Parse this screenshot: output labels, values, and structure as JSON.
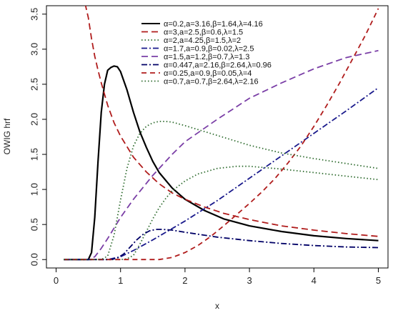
{
  "chart_data": {
    "type": "line",
    "xlabel": "x",
    "ylabel": "OWIG hrf",
    "xlim": [
      -0.15,
      5.15
    ],
    "ylim": [
      -0.12,
      3.62
    ],
    "xticks": [
      0,
      1,
      2,
      3,
      4,
      5
    ],
    "yticks": [
      0.0,
      0.5,
      1.0,
      1.5,
      2.0,
      2.5,
      3.0,
      3.5
    ],
    "xtick_labels": [
      "0",
      "1",
      "2",
      "3",
      "4",
      "5"
    ],
    "ytick_labels": [
      "0.0",
      "0.5",
      "1.0",
      "1.5",
      "2.0",
      "2.5",
      "3.0",
      "3.5"
    ],
    "grid": false,
    "legend_position": "top-right",
    "series": [
      {
        "name": "α=0.2,a=3.16,β=1.64,λ=4.16",
        "color": "#000000",
        "dash": "solid",
        "x": [
          0.12,
          0.5,
          0.55,
          0.6,
          0.65,
          0.7,
          0.75,
          0.8,
          0.85,
          0.9,
          0.95,
          1.0,
          1.1,
          1.2,
          1.3,
          1.4,
          1.5,
          1.6,
          1.8,
          2.0,
          2.3,
          2.6,
          3.0,
          3.5,
          4.0,
          4.5,
          5.0
        ],
        "y": [
          0.0,
          0.0,
          0.1,
          0.6,
          1.4,
          2.1,
          2.5,
          2.7,
          2.74,
          2.76,
          2.75,
          2.68,
          2.42,
          2.1,
          1.82,
          1.6,
          1.4,
          1.24,
          1.02,
          0.86,
          0.7,
          0.58,
          0.48,
          0.4,
          0.34,
          0.3,
          0.27
        ]
      },
      {
        "name": "α=3,a=2.5,β=0.6,λ=1.5",
        "color": "#b01c1c",
        "dash": "longdash",
        "x": [
          0.45,
          0.5,
          0.55,
          0.6,
          0.65,
          0.7,
          0.8,
          0.9,
          1.0,
          1.2,
          1.4,
          1.6,
          1.8,
          2.0,
          2.3,
          2.6,
          3.0,
          3.5,
          4.0,
          4.5,
          5.0
        ],
        "y": [
          3.65,
          3.45,
          3.15,
          2.9,
          2.7,
          2.52,
          2.2,
          1.95,
          1.76,
          1.46,
          1.25,
          1.08,
          0.95,
          0.86,
          0.75,
          0.66,
          0.57,
          0.48,
          0.42,
          0.37,
          0.33
        ]
      },
      {
        "name": "α=2,a=4.25,β=1.5,λ=2",
        "color": "#2e6b2e",
        "dash": "dotted",
        "x": [
          0.12,
          1.0,
          1.1,
          1.2,
          1.3,
          1.4,
          1.5,
          1.6,
          1.7,
          1.8,
          2.0,
          2.2,
          2.5,
          2.8,
          3.0,
          3.5,
          4.0,
          4.5,
          5.0
        ],
        "y": [
          0.0,
          0.0,
          0.01,
          0.06,
          0.22,
          0.4,
          0.58,
          0.74,
          0.87,
          0.98,
          1.12,
          1.22,
          1.3,
          1.33,
          1.33,
          1.29,
          1.24,
          1.19,
          1.14
        ]
      },
      {
        "name": "α=1.7,a=0.9,β=0.02,λ=2.5",
        "color": "#1a1a8c",
        "dash": "dashdot",
        "x": [
          0.12,
          0.8,
          1.0,
          1.2,
          1.5,
          2.0,
          2.5,
          3.0,
          3.5,
          4.0,
          4.5,
          5.0
        ],
        "y": [
          0.0,
          0.0,
          0.04,
          0.13,
          0.28,
          0.55,
          0.84,
          1.16,
          1.48,
          1.8,
          2.12,
          2.45
        ]
      },
      {
        "name": "α=1.5,a=1.2,β=0.7,λ=1.3",
        "color": "#7a3ea6",
        "dash": "longdash",
        "x": [
          0.12,
          0.5,
          0.6,
          0.7,
          0.8,
          1.0,
          1.2,
          1.5,
          1.8,
          2.0,
          2.5,
          3.0,
          3.5,
          4.0,
          4.5,
          5.0
        ],
        "y": [
          0.0,
          0.0,
          0.04,
          0.16,
          0.3,
          0.6,
          0.86,
          1.2,
          1.5,
          1.68,
          2.0,
          2.3,
          2.52,
          2.72,
          2.88,
          2.98
        ]
      },
      {
        "name": "α=0.447,a=2.16,β=2.64,λ=0.96",
        "color": "#000066",
        "dash": "dashdot",
        "x": [
          0.12,
          0.85,
          0.95,
          1.05,
          1.15,
          1.25,
          1.35,
          1.45,
          1.55,
          1.65,
          1.8,
          2.0,
          2.5,
          3.0,
          3.5,
          4.0,
          4.5,
          5.0
        ],
        "y": [
          0.0,
          0.0,
          0.02,
          0.08,
          0.18,
          0.28,
          0.36,
          0.41,
          0.43,
          0.43,
          0.42,
          0.39,
          0.32,
          0.27,
          0.23,
          0.2,
          0.18,
          0.17
        ]
      },
      {
        "name": "α=0.25,a=0.9,β=0.05,λ=4",
        "color": "#b01c1c",
        "dash": "dashed",
        "x": [
          0.12,
          1.6,
          1.8,
          2.0,
          2.2,
          2.4,
          2.6,
          2.8,
          3.0,
          3.2,
          3.4,
          3.6,
          3.8,
          4.0,
          4.2,
          4.4,
          4.6,
          4.8,
          5.0
        ],
        "y": [
          0.0,
          0.0,
          0.03,
          0.1,
          0.2,
          0.33,
          0.48,
          0.64,
          0.8,
          0.97,
          1.16,
          1.38,
          1.62,
          1.9,
          2.2,
          2.52,
          2.86,
          3.2,
          3.58
        ]
      },
      {
        "name": "α=0.7,a=0.7,β=2.64,λ=2.16",
        "color": "#2e6b2e",
        "dash": "dotted",
        "x": [
          0.12,
          0.7,
          0.8,
          0.9,
          1.0,
          1.1,
          1.2,
          1.3,
          1.4,
          1.5,
          1.6,
          1.7,
          1.8,
          2.0,
          2.5,
          3.0,
          3.5,
          4.0,
          4.5,
          5.0
        ],
        "y": [
          0.0,
          0.0,
          0.05,
          0.35,
          0.85,
          1.3,
          1.62,
          1.8,
          1.9,
          1.95,
          1.97,
          1.97,
          1.96,
          1.91,
          1.77,
          1.63,
          1.52,
          1.44,
          1.37,
          1.3
        ]
      }
    ]
  }
}
